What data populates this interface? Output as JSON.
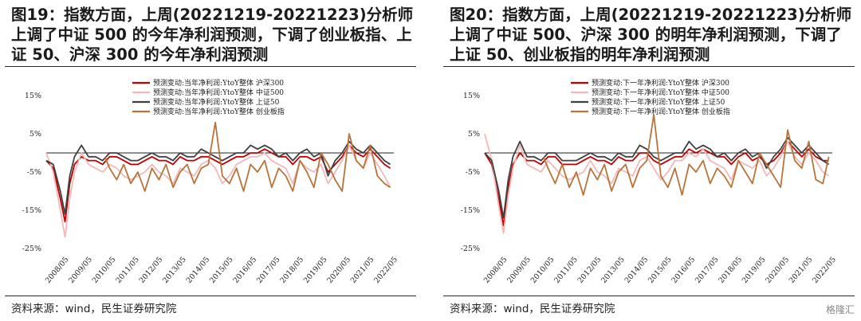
{
  "chart_data": [
    {
      "type": "line",
      "title": "图19：指数方面，上周(20221219-20221223)分析师上调了中证 500 的今年净利润预测，下调了创业板指、上证 50、沪深 300 的今年净利润预测",
      "source": "资料来源：wind，民生证券研究院",
      "x_ticks": [
        "2008/05",
        "2009/05",
        "2010/05",
        "2011/05",
        "2012/05",
        "2013/05",
        "2014/05",
        "2015/05",
        "2016/05",
        "2017/05",
        "2018/05",
        "2019/05",
        "2020/05",
        "2021/05",
        "2022/05"
      ],
      "y_ticks": [
        "15%",
        "5%",
        "-5%",
        "-15%",
        "-25%"
      ],
      "ylim": [
        -25,
        15
      ],
      "xlim": [
        2008.3,
        2023.1
      ],
      "legend_position": "top",
      "grid": false,
      "series": [
        {
          "name": "预测变动:当年净利润:YtoY整体 沪深300",
          "color": "#c00000",
          "width": 1.8,
          "x": [
            2008.3,
            2008.6,
            2008.9,
            2009.1,
            2009.3,
            2009.5,
            2009.8,
            2010.1,
            2010.4,
            2010.7,
            2011.0,
            2011.3,
            2011.6,
            2011.9,
            2012.2,
            2012.5,
            2012.8,
            2013.1,
            2013.4,
            2013.7,
            2014.0,
            2014.3,
            2014.6,
            2014.9,
            2015.2,
            2015.5,
            2015.8,
            2016.1,
            2016.4,
            2016.7,
            2017.0,
            2017.3,
            2017.6,
            2017.9,
            2018.2,
            2018.5,
            2018.8,
            2019.1,
            2019.4,
            2019.7,
            2020.0,
            2020.3,
            2020.6,
            2020.9,
            2021.2,
            2021.5,
            2021.8,
            2022.1,
            2022.4,
            2022.7,
            2022.95
          ],
          "y": [
            -2,
            -4,
            -12,
            -18,
            -8,
            -3,
            -1,
            -2,
            -2,
            -3,
            -1,
            -1,
            -2,
            -3,
            -3,
            -2,
            -1,
            -2,
            -2,
            -3,
            -1,
            -2,
            -2,
            -1,
            -1,
            -2,
            -3,
            -2,
            -1,
            -1,
            0,
            0,
            1,
            0,
            -1,
            -1,
            -3,
            -1,
            -1,
            -2,
            -1,
            -5,
            -3,
            -1,
            2,
            0,
            -1,
            1,
            -1,
            -3,
            -4
          ]
        },
        {
          "name": "预测变动:当年净利润:YtoY整体 中证500",
          "color": "#f4b8b8",
          "width": 1.8,
          "x": [
            2008.3,
            2008.6,
            2008.9,
            2009.1,
            2009.3,
            2009.5,
            2009.8,
            2010.1,
            2010.4,
            2010.7,
            2011.0,
            2011.3,
            2011.6,
            2011.9,
            2012.2,
            2012.5,
            2012.8,
            2013.1,
            2013.4,
            2013.7,
            2014.0,
            2014.3,
            2014.6,
            2014.9,
            2015.2,
            2015.5,
            2015.8,
            2016.1,
            2016.4,
            2016.7,
            2017.0,
            2017.3,
            2017.6,
            2017.9,
            2018.2,
            2018.5,
            2018.8,
            2019.1,
            2019.4,
            2019.7,
            2020.0,
            2020.3,
            2020.6,
            2020.9,
            2021.2,
            2021.5,
            2021.8,
            2022.1,
            2022.4,
            2022.7,
            2022.95
          ],
          "y": [
            0,
            -5,
            -15,
            -22,
            -12,
            -5,
            0,
            -3,
            -4,
            -5,
            -3,
            -4,
            -6,
            -7,
            -6,
            -5,
            -3,
            -5,
            -6,
            -8,
            -4,
            -5,
            -6,
            -3,
            -2,
            -4,
            -8,
            -6,
            -3,
            -2,
            -1,
            -1,
            0,
            -2,
            -3,
            -4,
            -8,
            -2,
            -4,
            -5,
            -3,
            -8,
            -5,
            -2,
            2,
            -2,
            -4,
            0,
            -3,
            -6,
            -9
          ]
        },
        {
          "name": "预测变动:当年净利润:YtoY整体 上证50",
          "color": "#404040",
          "width": 1.8,
          "x": [
            2008.3,
            2008.6,
            2008.9,
            2009.1,
            2009.3,
            2009.5,
            2009.8,
            2010.1,
            2010.4,
            2010.7,
            2011.0,
            2011.3,
            2011.6,
            2011.9,
            2012.2,
            2012.5,
            2012.8,
            2013.1,
            2013.4,
            2013.7,
            2014.0,
            2014.3,
            2014.6,
            2014.9,
            2015.2,
            2015.5,
            2015.8,
            2016.1,
            2016.4,
            2016.7,
            2017.0,
            2017.3,
            2017.6,
            2017.9,
            2018.2,
            2018.5,
            2018.8,
            2019.1,
            2019.4,
            2019.7,
            2020.0,
            2020.3,
            2020.6,
            2020.9,
            2021.2,
            2021.5,
            2021.8,
            2022.1,
            2022.4,
            2022.7,
            2022.95
          ],
          "y": [
            -2,
            -3,
            -10,
            -16,
            -6,
            -1,
            2,
            -1,
            -1,
            -2,
            0,
            0,
            -1,
            -2,
            -2,
            -1,
            0,
            -1,
            -1,
            -2,
            0,
            -1,
            -1,
            1,
            0,
            -1,
            -2,
            -1,
            0,
            0,
            2,
            1,
            2,
            1,
            -1,
            0,
            -2,
            0,
            1,
            -1,
            0,
            -6,
            -2,
            0,
            3,
            1,
            0,
            2,
            0,
            -2,
            -3
          ]
        },
        {
          "name": "预测变动:当年净利润:YtoY整体 创业板指",
          "color": "#b8733a",
          "width": 1.8,
          "x": [
            2010.8,
            2011.0,
            2011.3,
            2011.6,
            2011.9,
            2012.2,
            2012.5,
            2012.8,
            2013.1,
            2013.4,
            2013.7,
            2014.0,
            2014.3,
            2014.6,
            2014.9,
            2015.2,
            2015.5,
            2015.8,
            2016.1,
            2016.4,
            2016.7,
            2017.0,
            2017.3,
            2017.6,
            2017.9,
            2018.2,
            2018.5,
            2018.8,
            2019.1,
            2019.4,
            2019.7,
            2020.0,
            2020.3,
            2020.6,
            2020.9,
            2021.2,
            2021.5,
            2021.8,
            2022.1,
            2022.4,
            2022.7,
            2022.95
          ],
          "y": [
            -1,
            -4,
            -7,
            -3,
            -8,
            -5,
            -10,
            -4,
            -7,
            -3,
            -9,
            -5,
            -3,
            -8,
            -4,
            -3,
            8,
            -6,
            -8,
            -4,
            -10,
            -3,
            -5,
            -2,
            -9,
            -4,
            -6,
            -10,
            -2,
            -5,
            -9,
            0,
            -3,
            -7,
            -10,
            5,
            -2,
            -4,
            2,
            -6,
            -8,
            -9
          ]
        }
      ]
    },
    {
      "type": "line",
      "title": "图20：指数方面，上周(20221219-20221223)分析师上调了中证 500、沪深 300 的明年净利润预测，下调了上证 50、创业板指的明年净利润预测",
      "source": "资料来源：wind，民生证券研究院",
      "x_ticks": [
        "2008/05",
        "2009/05",
        "2010/05",
        "2011/05",
        "2012/05",
        "2013/05",
        "2014/05",
        "2015/05",
        "2016/05",
        "2017/05",
        "2018/05",
        "2019/05",
        "2020/05",
        "2021/05",
        "2022/05"
      ],
      "y_ticks": [
        "15%",
        "5%",
        "-5%",
        "-15%",
        "-25%"
      ],
      "ylim": [
        -25,
        15
      ],
      "xlim": [
        2008.3,
        2023.1
      ],
      "legend_position": "top",
      "grid": false,
      "series": [
        {
          "name": "预测变动:下一年净利润:YtoY整体 沪深300",
          "color": "#c00000",
          "width": 1.8,
          "x": [
            2008.3,
            2008.6,
            2008.9,
            2009.1,
            2009.3,
            2009.5,
            2009.8,
            2010.1,
            2010.4,
            2010.7,
            2011.0,
            2011.3,
            2011.6,
            2011.9,
            2012.2,
            2012.5,
            2012.8,
            2013.1,
            2013.4,
            2013.7,
            2014.0,
            2014.3,
            2014.6,
            2014.9,
            2015.2,
            2015.5,
            2015.8,
            2016.1,
            2016.4,
            2016.7,
            2017.0,
            2017.3,
            2017.6,
            2017.9,
            2018.2,
            2018.5,
            2018.8,
            2019.1,
            2019.4,
            2019.7,
            2020.0,
            2020.3,
            2020.6,
            2020.9,
            2021.2,
            2021.5,
            2021.8,
            2022.1,
            2022.4,
            2022.7,
            2022.95
          ],
          "y": [
            0,
            -3,
            -12,
            -19,
            -9,
            -3,
            0,
            -2,
            -2,
            -3,
            -1,
            -1,
            -3,
            -3,
            -3,
            -2,
            -1,
            -2,
            -2,
            -3,
            -1,
            -2,
            -2,
            0,
            0,
            -2,
            -3,
            -2,
            -1,
            -1,
            1,
            0,
            1,
            0,
            -1,
            -1,
            -3,
            -1,
            0,
            -2,
            -1,
            -3,
            -2,
            0,
            3,
            1,
            -1,
            1,
            -1,
            -2,
            -2
          ]
        },
        {
          "name": "预测变动:下一年净利润:YtoY整体 中证500",
          "color": "#f4b8b8",
          "width": 1.8,
          "x": [
            2008.3,
            2008.6,
            2008.9,
            2009.1,
            2009.3,
            2009.5,
            2009.8,
            2010.1,
            2010.4,
            2010.7,
            2011.0,
            2011.3,
            2011.6,
            2011.9,
            2012.2,
            2012.5,
            2012.8,
            2013.1,
            2013.4,
            2013.7,
            2014.0,
            2014.3,
            2014.6,
            2014.9,
            2015.2,
            2015.5,
            2015.8,
            2016.1,
            2016.4,
            2016.7,
            2017.0,
            2017.3,
            2017.6,
            2017.9,
            2018.2,
            2018.5,
            2018.8,
            2019.1,
            2019.4,
            2019.7,
            2020.0,
            2020.3,
            2020.6,
            2020.9,
            2021.2,
            2021.5,
            2021.8,
            2022.1,
            2022.4,
            2022.7,
            2022.95
          ],
          "y": [
            5,
            -2,
            -14,
            -21,
            -11,
            -4,
            2,
            -3,
            -4,
            -5,
            -2,
            -4,
            -6,
            -7,
            -6,
            -5,
            -2,
            -5,
            -6,
            -8,
            -4,
            -5,
            -6,
            -2,
            -1,
            -4,
            -7,
            -5,
            -2,
            -2,
            0,
            -1,
            1,
            -2,
            -3,
            -4,
            -7,
            -2,
            -3,
            -4,
            -2,
            -6,
            -4,
            -1,
            3,
            -1,
            -3,
            0,
            -2,
            -5,
            -6
          ]
        },
        {
          "name": "预测变动:下一年净利润:YtoY整体 上证50",
          "color": "#404040",
          "width": 1.8,
          "x": [
            2008.3,
            2008.6,
            2008.9,
            2009.1,
            2009.3,
            2009.5,
            2009.8,
            2010.1,
            2010.4,
            2010.7,
            2011.0,
            2011.3,
            2011.6,
            2011.9,
            2012.2,
            2012.5,
            2012.8,
            2013.1,
            2013.4,
            2013.7,
            2014.0,
            2014.3,
            2014.6,
            2014.9,
            2015.2,
            2015.5,
            2015.8,
            2016.1,
            2016.4,
            2016.7,
            2017.0,
            2017.3,
            2017.6,
            2017.9,
            2018.2,
            2018.5,
            2018.8,
            2019.1,
            2019.4,
            2019.7,
            2020.0,
            2020.3,
            2020.6,
            2020.9,
            2021.2,
            2021.5,
            2021.8,
            2022.1,
            2022.4,
            2022.7,
            2022.95
          ],
          "y": [
            0,
            -2,
            -10,
            -17,
            -7,
            -1,
            3,
            -1,
            -1,
            -2,
            0,
            0,
            -2,
            -2,
            -2,
            -1,
            0,
            -1,
            -1,
            -2,
            0,
            -1,
            -1,
            2,
            1,
            -1,
            -2,
            -1,
            0,
            0,
            3,
            1,
            2,
            1,
            -1,
            0,
            -2,
            0,
            1,
            -1,
            0,
            -4,
            -1,
            1,
            4,
            2,
            0,
            2,
            0,
            -2,
            -3
          ]
        },
        {
          "name": "预测变动:下一年净利润:YtoY整体 创业板指",
          "color": "#b8733a",
          "width": 1.8,
          "x": [
            2010.8,
            2011.0,
            2011.3,
            2011.6,
            2011.9,
            2012.2,
            2012.5,
            2012.8,
            2013.1,
            2013.4,
            2013.7,
            2014.0,
            2014.3,
            2014.6,
            2014.9,
            2015.2,
            2015.5,
            2015.8,
            2016.1,
            2016.4,
            2016.7,
            2017.0,
            2017.3,
            2017.6,
            2017.9,
            2018.2,
            2018.5,
            2018.8,
            2019.1,
            2019.4,
            2019.7,
            2020.0,
            2020.3,
            2020.6,
            2020.9,
            2021.2,
            2021.5,
            2021.8,
            2022.1,
            2022.4,
            2022.7,
            2022.95
          ],
          "y": [
            -1,
            -4,
            -8,
            -3,
            -9,
            -5,
            -11,
            -4,
            -7,
            -3,
            -10,
            -5,
            -3,
            -9,
            -4,
            -2,
            10,
            -6,
            -9,
            -4,
            -11,
            -3,
            -5,
            -2,
            -8,
            -4,
            -6,
            -9,
            -2,
            -5,
            -8,
            0,
            -3,
            -6,
            -9,
            6,
            -2,
            -4,
            3,
            -7,
            -8,
            -1
          ]
        }
      ]
    }
  ],
  "watermark": "格隆汇"
}
